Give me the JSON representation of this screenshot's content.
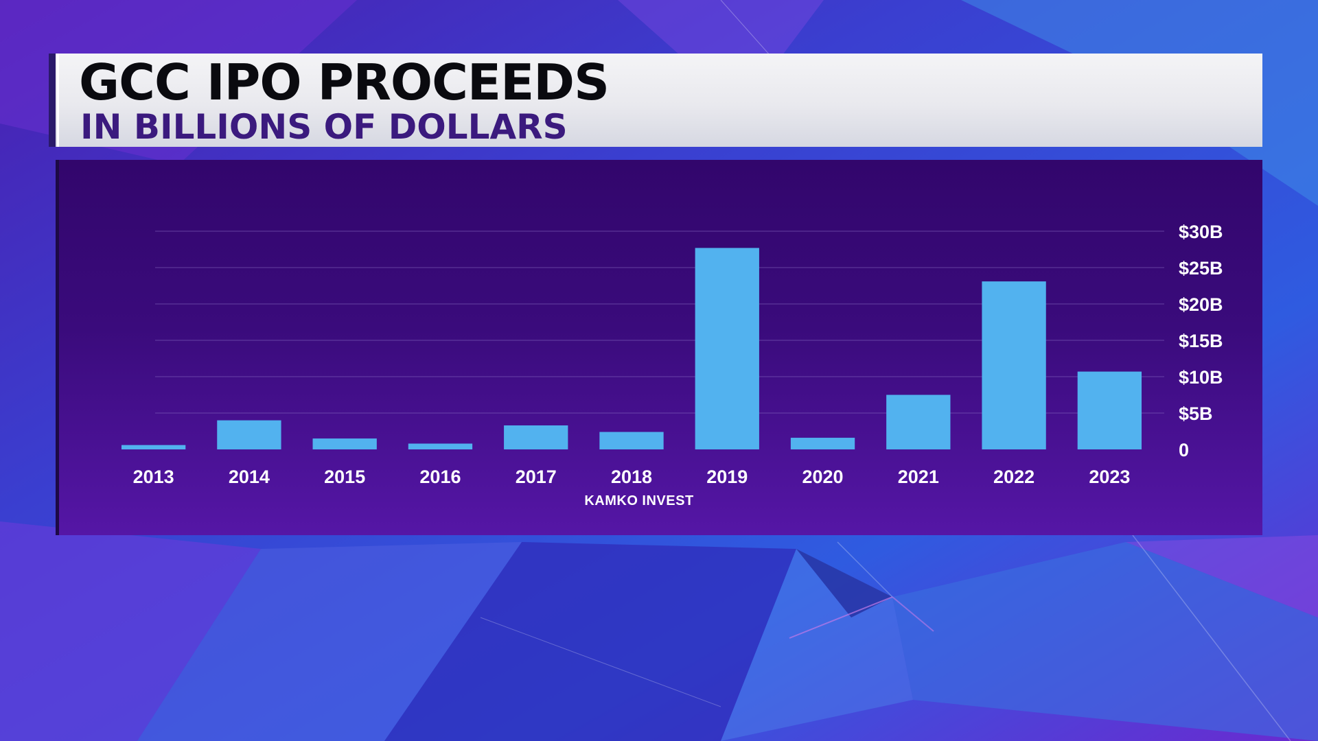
{
  "header": {
    "title": "GCC IPO PROCEEDS",
    "subtitle": "IN BILLIONS OF DOLLARS"
  },
  "footer": {
    "source": "KAMKO INVEST"
  },
  "colors": {
    "bar": "#52b2ef",
    "panel_top": "#32066c",
    "panel_bottom": "#5516a6",
    "gridline": "#8b6fc4",
    "title_text": "#0a0a0f",
    "subtitle_text": "#3b1a7e",
    "tick_text": "#ffffff"
  },
  "chart_data": {
    "type": "bar",
    "title": "GCC IPO PROCEEDS",
    "subtitle": "IN BILLIONS OF DOLLARS",
    "source": "KAMKO INVEST",
    "xlabel": "",
    "ylabel": "",
    "categories": [
      "2013",
      "2014",
      "2015",
      "2016",
      "2017",
      "2018",
      "2019",
      "2020",
      "2021",
      "2022",
      "2023"
    ],
    "values": [
      0.6,
      4.0,
      1.5,
      0.8,
      3.3,
      2.4,
      27.7,
      1.6,
      7.5,
      23.1,
      10.7
    ],
    "ylim": [
      0,
      30
    ],
    "yticks": [
      0,
      5,
      10,
      15,
      20,
      25,
      30
    ],
    "ytick_labels": [
      "0",
      "$5B",
      "$10B",
      "$15B",
      "$20B",
      "$25B",
      "$30B"
    ],
    "y_axis_side": "right",
    "grid": true,
    "legend": "none"
  }
}
